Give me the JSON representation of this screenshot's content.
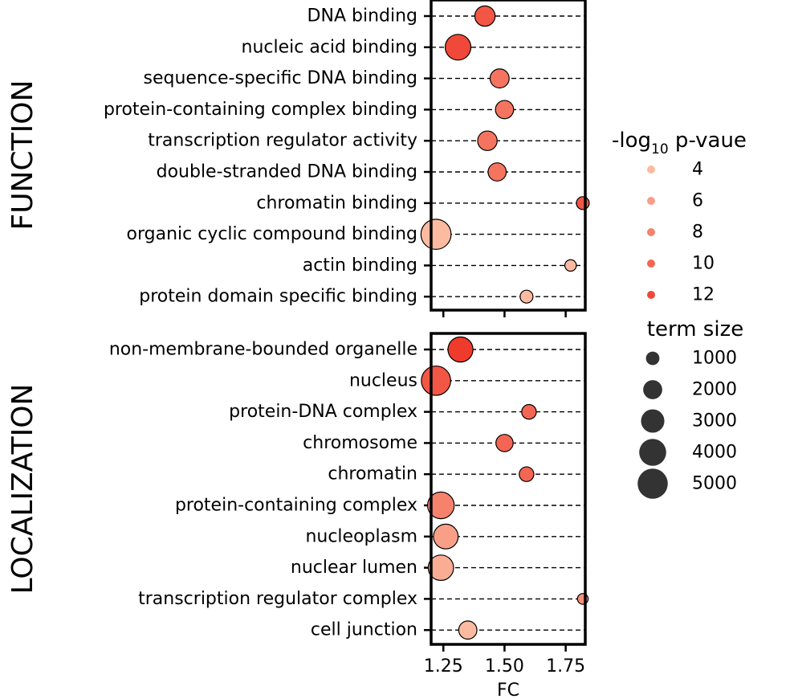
{
  "chart_data": {
    "type": "scatter",
    "subtype": "dot-plot",
    "xlabel": "FC",
    "xlim": [
      1.2,
      1.83
    ],
    "xticks": [
      1.25,
      1.5,
      1.75
    ],
    "xtick_labels": [
      "1.25",
      "1.50",
      "1.75"
    ],
    "grid": "dashed horizontal guide line per category",
    "panels": [
      {
        "title": "FUNCTION",
        "rows": [
          {
            "term": "DNA binding",
            "fc": 1.42,
            "neglog10p": 11,
            "size": 2500
          },
          {
            "term": "nucleic acid binding",
            "fc": 1.31,
            "neglog10p": 12,
            "size": 4000
          },
          {
            "term": "sequence-specific DNA binding",
            "fc": 1.48,
            "neglog10p": 9,
            "size": 2200
          },
          {
            "term": "protein-containing complex binding",
            "fc": 1.5,
            "neglog10p": 9,
            "size": 2000
          },
          {
            "term": "transcription regulator activity",
            "fc": 1.43,
            "neglog10p": 9,
            "size": 2300
          },
          {
            "term": "double-stranded DNA binding",
            "fc": 1.47,
            "neglog10p": 9,
            "size": 2000
          },
          {
            "term": "chromatin binding",
            "fc": 1.82,
            "neglog10p": 11,
            "size": 1000
          },
          {
            "term": "organic cyclic compound binding",
            "fc": 1.22,
            "neglog10p": 4,
            "size": 5500
          },
          {
            "term": "actin binding",
            "fc": 1.77,
            "neglog10p": 4,
            "size": 800
          },
          {
            "term": "protein domain specific binding",
            "fc": 1.59,
            "neglog10p": 4,
            "size": 1000
          }
        ]
      },
      {
        "title": "LOCALIZATION",
        "rows": [
          {
            "term": "non-membrane-bounded organelle",
            "fc": 1.32,
            "neglog10p": 13,
            "size": 3800
          },
          {
            "term": "nucleus",
            "fc": 1.22,
            "neglog10p": 11,
            "size": 5200
          },
          {
            "term": "protein-DNA complex",
            "fc": 1.6,
            "neglog10p": 10,
            "size": 1300
          },
          {
            "term": "chromosome",
            "fc": 1.5,
            "neglog10p": 10,
            "size": 1800
          },
          {
            "term": "chromatin",
            "fc": 1.59,
            "neglog10p": 10,
            "size": 1300
          },
          {
            "term": "protein-containing complex",
            "fc": 1.24,
            "neglog10p": 8,
            "size": 4300
          },
          {
            "term": "nucleoplasm",
            "fc": 1.26,
            "neglog10p": 6,
            "size": 3700
          },
          {
            "term": "nuclear lumen",
            "fc": 1.24,
            "neglog10p": 5,
            "size": 3900
          },
          {
            "term": "transcription regulator complex",
            "fc": 1.82,
            "neglog10p": 7,
            "size": 700
          },
          {
            "term": "cell junction",
            "fc": 1.35,
            "neglog10p": 4,
            "size": 2000
          }
        ]
      }
    ],
    "legend": {
      "placement": "right",
      "color_title_main": "-log",
      "color_title_sub": "10",
      "color_title_tail": " p-vaue",
      "color_entries": [
        {
          "label": "4",
          "value": 4
        },
        {
          "label": "6",
          "value": 6
        },
        {
          "label": "8",
          "value": 8
        },
        {
          "label": "10",
          "value": 10
        },
        {
          "label": "12",
          "value": 12
        }
      ],
      "size_title": "term size",
      "size_entries": [
        {
          "label": "1000",
          "value": 1000
        },
        {
          "label": "2000",
          "value": 2000
        },
        {
          "label": "3000",
          "value": 3000
        },
        {
          "label": "4000",
          "value": 4000
        },
        {
          "label": "5000",
          "value": 5000
        }
      ]
    },
    "colors": {
      "low": "#fcbba1",
      "high": "#ef3b2c",
      "size_legend": "#333333",
      "outline": "#000000"
    }
  }
}
